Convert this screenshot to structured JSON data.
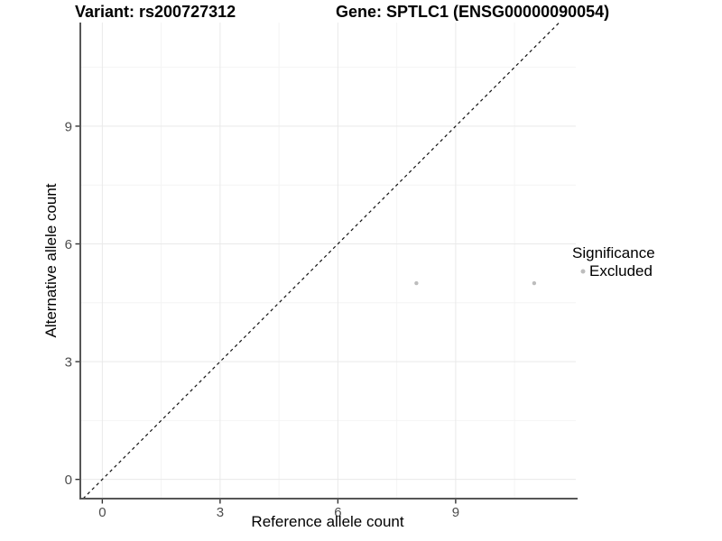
{
  "titles": {
    "variant": "Variant: rs200727312",
    "gene": "Gene: SPTLC1 (ENSG00000090054)"
  },
  "axis_titles": {
    "x": "Reference allele count",
    "y": "Alternative allele count"
  },
  "legend": {
    "title": "Significance",
    "items": [
      {
        "label": "Excluded",
        "color": "#bdbdbd"
      }
    ]
  },
  "colors": {
    "background": "#ffffff",
    "axis_line": "#565656",
    "tick_mark": "#333333",
    "tick_label": "#4d4d4d",
    "grid_major": "#e9e9e9",
    "grid_minor": "#f4f4f4",
    "identity_line": "#111111",
    "point": "#bdbdbd"
  },
  "chart_data": {
    "type": "scatter",
    "title": "Variant: rs200727312 | Gene: SPTLC1 (ENSG00000090054)",
    "xlabel": "Reference allele count",
    "ylabel": "Alternative allele count",
    "xlim": [
      -0.56,
      12.06
    ],
    "ylim": [
      -0.49,
      11.64
    ],
    "x_ticks": [
      0,
      3,
      6,
      9
    ],
    "y_ticks": [
      0,
      3,
      6,
      9
    ],
    "x_minor_ticks": [
      1.5,
      4.5,
      7.5,
      10.5
    ],
    "y_minor_ticks": [
      1.5,
      4.5,
      7.5,
      10.5
    ],
    "grid": true,
    "legend_position": "right",
    "reference_line": {
      "kind": "identity",
      "slope": 1,
      "intercept": 0,
      "style": "dashed"
    },
    "series": [
      {
        "name": "Excluded",
        "color": "#bdbdbd",
        "marker": "circle",
        "size": 2.2,
        "points": [
          {
            "x": 8,
            "y": 5
          },
          {
            "x": 11,
            "y": 5
          }
        ]
      }
    ]
  }
}
